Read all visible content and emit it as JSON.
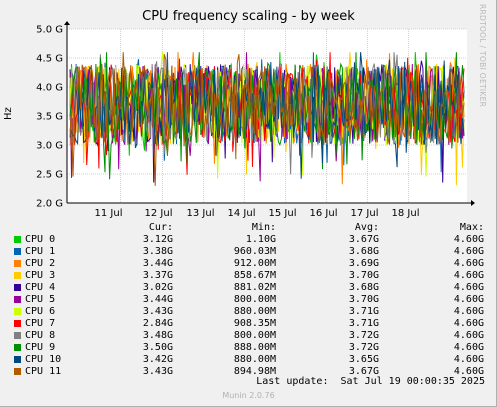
{
  "chart_data": {
    "type": "line",
    "title": "CPU frequency scaling - by week",
    "ylabel": "Hz",
    "xlabel": "",
    "ylim": [
      2.0,
      5.0
    ],
    "y_ticks": [
      "2.0 G",
      "2.5 G",
      "3.0 G",
      "3.5 G",
      "4.0 G",
      "4.5 G",
      "5.0 G"
    ],
    "x_ticks": [
      "11 Jul",
      "12 Jul",
      "13 Jul",
      "14 Jul",
      "15 Jul",
      "16 Jul",
      "17 Jul",
      "18 Jul"
    ],
    "grid": true,
    "series": [
      {
        "name": "CPU 0",
        "color": "#00cc00",
        "cur": "3.12G",
        "min": "1.10G",
        "avg": "3.67G",
        "max": "4.60G"
      },
      {
        "name": "CPU 1",
        "color": "#0066b3",
        "cur": "3.38G",
        "min": "960.03M",
        "avg": "3.68G",
        "max": "4.60G"
      },
      {
        "name": "CPU 2",
        "color": "#ff8000",
        "cur": "3.44G",
        "min": "912.00M",
        "avg": "3.69G",
        "max": "4.60G"
      },
      {
        "name": "CPU 3",
        "color": "#ffcc00",
        "cur": "3.37G",
        "min": "858.67M",
        "avg": "3.70G",
        "max": "4.60G"
      },
      {
        "name": "CPU 4",
        "color": "#330099",
        "cur": "3.02G",
        "min": "881.02M",
        "avg": "3.68G",
        "max": "4.60G"
      },
      {
        "name": "CPU 5",
        "color": "#990099",
        "cur": "3.44G",
        "min": "800.00M",
        "avg": "3.70G",
        "max": "4.60G"
      },
      {
        "name": "CPU 6",
        "color": "#ccff00",
        "cur": "3.43G",
        "min": "880.00M",
        "avg": "3.71G",
        "max": "4.60G"
      },
      {
        "name": "CPU 7",
        "color": "#ff0000",
        "cur": "2.84G",
        "min": "908.35M",
        "avg": "3.71G",
        "max": "4.60G"
      },
      {
        "name": "CPU 8",
        "color": "#808080",
        "cur": "3.48G",
        "min": "800.00M",
        "avg": "3.72G",
        "max": "4.60G"
      },
      {
        "name": "CPU 9",
        "color": "#008f00",
        "cur": "3.50G",
        "min": "888.00M",
        "avg": "3.72G",
        "max": "4.60G"
      },
      {
        "name": "CPU 10",
        "color": "#00487d",
        "cur": "3.42G",
        "min": "880.00M",
        "avg": "3.65G",
        "max": "4.60G"
      },
      {
        "name": "CPU 11",
        "color": "#b35a00",
        "cur": "3.43G",
        "min": "894.98M",
        "avg": "3.67G",
        "max": "4.60G"
      }
    ]
  },
  "legend_headers": {
    "cur": "Cur:",
    "min": "Min:",
    "avg": "Avg:",
    "max": "Max:"
  },
  "last_update": "Last update:  Sat Jul 19 00:00:35 2025",
  "watermark": "RRDTOOL / TOBI OETIKER",
  "version": "Munin 2.0.76"
}
